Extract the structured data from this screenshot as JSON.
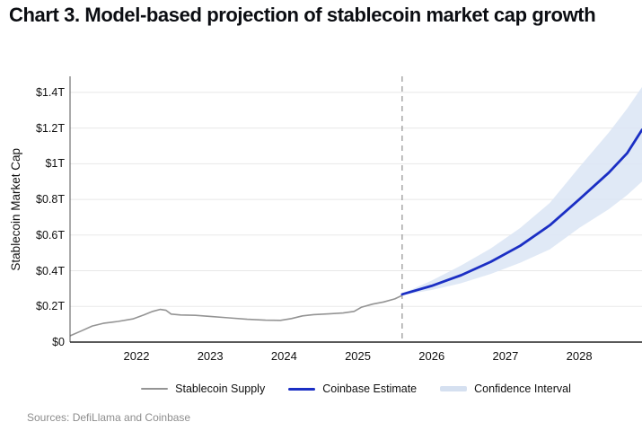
{
  "page": {
    "title": "Chart 3. Model-based projection of stablecoin market cap growth",
    "source_note": "Sources: DefiLlama and Coinbase"
  },
  "colors": {
    "supply_line": "#949494",
    "estimate_line": "#1b2fc4",
    "confidence_band": "#dbe5f4",
    "confidence_swatch": "#d5e0f0",
    "gridline": "#e8e8e8",
    "axis_bottom": "#222222",
    "axis_left": "#555555",
    "divider": "#999999",
    "title_text": "#0b0d12",
    "tick_text": "#101010",
    "source_text": "#8d8d8d"
  },
  "legend": {
    "items": [
      {
        "label": "Stablecoin Supply",
        "type": "line",
        "color": "#949494"
      },
      {
        "label": "Coinbase Estimate",
        "type": "line",
        "color": "#1b2fc4"
      },
      {
        "label": "Confidence Interval",
        "type": "band",
        "color": "#d5e0f0"
      }
    ]
  },
  "chart_data": {
    "type": "line",
    "title": "Chart 3. Model-based projection of stablecoin market cap growth",
    "xlabel": "",
    "ylabel": "Stablecoin Market Cap",
    "xlim": [
      2021.1,
      2028.85
    ],
    "ylim": [
      0,
      1.49
    ],
    "grid": "horizontal",
    "legend_position": "bottom",
    "divider_x": 2025.6,
    "x_ticks": [
      {
        "value": 2022,
        "label": "2022"
      },
      {
        "value": 2023,
        "label": "2023"
      },
      {
        "value": 2024,
        "label": "2024"
      },
      {
        "value": 2025,
        "label": "2025"
      },
      {
        "value": 2026,
        "label": "2026"
      },
      {
        "value": 2027,
        "label": "2027"
      },
      {
        "value": 2028,
        "label": "2028"
      }
    ],
    "y_ticks": [
      {
        "value": 0.0,
        "label": "$0"
      },
      {
        "value": 0.2,
        "label": "$0.2T"
      },
      {
        "value": 0.4,
        "label": "$0.4T"
      },
      {
        "value": 0.6,
        "label": "$0.6T"
      },
      {
        "value": 0.8,
        "label": "$0.8T"
      },
      {
        "value": 1.0,
        "label": "$1T"
      },
      {
        "value": 1.2,
        "label": "$1.2T"
      },
      {
        "value": 1.4,
        "label": "$1.4T"
      }
    ],
    "series": [
      {
        "name": "Stablecoin Supply",
        "type": "line",
        "color": "#949494",
        "units": "trillions USD",
        "points": [
          [
            2021.1,
            0.035
          ],
          [
            2021.25,
            0.062
          ],
          [
            2021.4,
            0.09
          ],
          [
            2021.55,
            0.105
          ],
          [
            2021.75,
            0.116
          ],
          [
            2021.95,
            0.13
          ],
          [
            2022.1,
            0.152
          ],
          [
            2022.22,
            0.172
          ],
          [
            2022.32,
            0.183
          ],
          [
            2022.4,
            0.178
          ],
          [
            2022.47,
            0.157
          ],
          [
            2022.6,
            0.152
          ],
          [
            2022.8,
            0.15
          ],
          [
            2023.0,
            0.144
          ],
          [
            2023.25,
            0.136
          ],
          [
            2023.5,
            0.128
          ],
          [
            2023.75,
            0.123
          ],
          [
            2023.95,
            0.122
          ],
          [
            2024.1,
            0.132
          ],
          [
            2024.25,
            0.147
          ],
          [
            2024.4,
            0.154
          ],
          [
            2024.6,
            0.158
          ],
          [
            2024.8,
            0.163
          ],
          [
            2024.95,
            0.172
          ],
          [
            2025.05,
            0.196
          ],
          [
            2025.2,
            0.213
          ],
          [
            2025.35,
            0.225
          ],
          [
            2025.5,
            0.242
          ],
          [
            2025.6,
            0.262
          ]
        ]
      },
      {
        "name": "Coinbase Estimate",
        "type": "line",
        "color": "#1b2fc4",
        "units": "trillions USD",
        "points": [
          [
            2025.6,
            0.268
          ],
          [
            2026.0,
            0.315
          ],
          [
            2026.4,
            0.375
          ],
          [
            2026.8,
            0.45
          ],
          [
            2027.2,
            0.54
          ],
          [
            2027.6,
            0.655
          ],
          [
            2028.0,
            0.8
          ],
          [
            2028.4,
            0.95
          ],
          [
            2028.65,
            1.06
          ],
          [
            2028.85,
            1.19
          ]
        ]
      },
      {
        "name": "Confidence Interval",
        "type": "band",
        "color": "#dbe5f4",
        "units": "trillions USD",
        "upper": [
          [
            2025.6,
            0.272
          ],
          [
            2026.0,
            0.345
          ],
          [
            2026.4,
            0.43
          ],
          [
            2026.8,
            0.525
          ],
          [
            2027.2,
            0.64
          ],
          [
            2027.6,
            0.78
          ],
          [
            2028.0,
            0.98
          ],
          [
            2028.4,
            1.175
          ],
          [
            2028.65,
            1.31
          ],
          [
            2028.85,
            1.43
          ]
        ],
        "lower": [
          [
            2025.6,
            0.264
          ],
          [
            2026.0,
            0.292
          ],
          [
            2026.4,
            0.33
          ],
          [
            2026.8,
            0.382
          ],
          [
            2027.2,
            0.445
          ],
          [
            2027.6,
            0.52
          ],
          [
            2028.0,
            0.64
          ],
          [
            2028.4,
            0.745
          ],
          [
            2028.65,
            0.825
          ],
          [
            2028.85,
            0.9
          ]
        ]
      }
    ]
  }
}
